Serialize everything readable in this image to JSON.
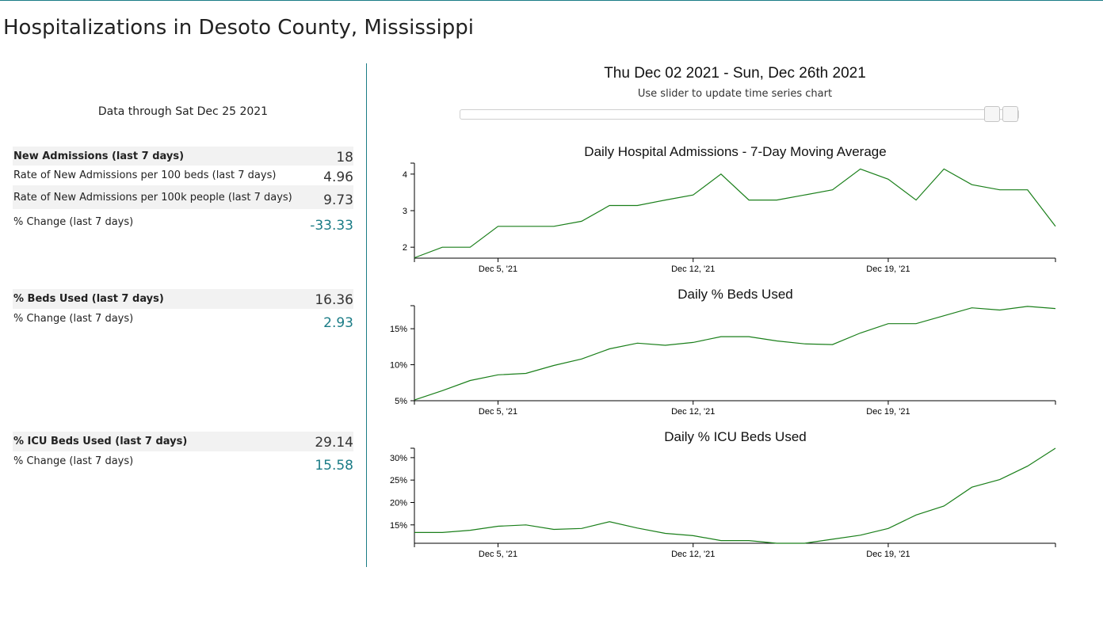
{
  "page_title": "Hospitalizations in Desoto County, Mississippi",
  "summary": {
    "data_through": "Data through Sat Dec 25 2021",
    "admissions": [
      {
        "label": "New Admissions (last 7 days)",
        "value": "18",
        "bold": true,
        "teal": false
      },
      {
        "label": "Rate of New Admissions per 100 beds (last 7 days)",
        "value": "4.96",
        "bold": false,
        "teal": false
      },
      {
        "label": "Rate of New Admissions per 100k people (last 7 days)",
        "value": "9.73",
        "bold": false,
        "teal": false
      },
      {
        "label": "% Change (last 7 days)",
        "value": "-33.33",
        "bold": false,
        "teal": true
      }
    ],
    "beds": [
      {
        "label": "% Beds Used (last 7 days)",
        "value": "16.36",
        "bold": true,
        "teal": false
      },
      {
        "label": "% Change (last 7 days)",
        "value": "2.93",
        "bold": false,
        "teal": true
      }
    ],
    "icu": [
      {
        "label": "% ICU Beds Used (last 7 days)",
        "value": "29.14",
        "bold": true,
        "teal": false
      },
      {
        "label": "% Change (last 7 days)",
        "value": "15.58",
        "bold": false,
        "teal": true
      }
    ]
  },
  "timeline": {
    "date_range": "Thu Dec 02 2021 - Sun, Dec 26th 2021",
    "slider_hint": "Use slider to update time series chart"
  },
  "colors": {
    "accent": "#1b7c86",
    "line": "#1a7f1a",
    "shaded_row": "#f2f2f2"
  },
  "chart_data": [
    {
      "type": "line",
      "title": "Daily Hospital Admissions - 7-Day Moving Average",
      "xlabel": "",
      "ylabel": "",
      "x_ticks": [
        "Dec 5, '21",
        "Dec 12, '21",
        "Dec 19, '21"
      ],
      "y_ticks": [
        "2",
        "3",
        "4"
      ],
      "ylim": [
        1.7,
        4.3
      ],
      "x": [
        "2021-12-02",
        "2021-12-03",
        "2021-12-04",
        "2021-12-05",
        "2021-12-06",
        "2021-12-07",
        "2021-12-08",
        "2021-12-09",
        "2021-12-10",
        "2021-12-11",
        "2021-12-12",
        "2021-12-13",
        "2021-12-14",
        "2021-12-15",
        "2021-12-16",
        "2021-12-17",
        "2021-12-18",
        "2021-12-19",
        "2021-12-20",
        "2021-12-21",
        "2021-12-22",
        "2021-12-23",
        "2021-12-24",
        "2021-12-25"
      ],
      "values": [
        1.71,
        2.0,
        2.0,
        2.57,
        2.57,
        2.57,
        2.71,
        3.14,
        3.14,
        3.29,
        3.43,
        4.0,
        3.29,
        3.29,
        3.43,
        3.57,
        4.14,
        3.86,
        3.29,
        4.14,
        3.71,
        3.57,
        3.57,
        2.57
      ],
      "grid": false,
      "legend": "none"
    },
    {
      "type": "line",
      "title": "Daily % Beds Used",
      "xlabel": "",
      "ylabel": "",
      "x_ticks": [
        "Dec 5, '21",
        "Dec 12, '21",
        "Dec 19, '21"
      ],
      "y_ticks": [
        "5%",
        "10%",
        "15%"
      ],
      "ylim": [
        5,
        18.2
      ],
      "x": [
        "2021-12-02",
        "2021-12-03",
        "2021-12-04",
        "2021-12-05",
        "2021-12-06",
        "2021-12-07",
        "2021-12-08",
        "2021-12-09",
        "2021-12-10",
        "2021-12-11",
        "2021-12-12",
        "2021-12-13",
        "2021-12-14",
        "2021-12-15",
        "2021-12-16",
        "2021-12-17",
        "2021-12-18",
        "2021-12-19",
        "2021-12-20",
        "2021-12-21",
        "2021-12-22",
        "2021-12-23",
        "2021-12-24",
        "2021-12-25"
      ],
      "values": [
        5.1,
        6.4,
        7.8,
        8.6,
        8.8,
        9.9,
        10.8,
        12.2,
        13.0,
        12.7,
        13.1,
        13.9,
        13.9,
        13.3,
        12.9,
        12.8,
        14.4,
        15.7,
        15.7,
        16.8,
        17.9,
        17.6,
        18.1,
        17.8
      ],
      "grid": false,
      "legend": "none"
    },
    {
      "type": "line",
      "title": "Daily % ICU Beds Used",
      "xlabel": "",
      "ylabel": "",
      "x_ticks": [
        "Dec 5, '21",
        "Dec 12, '21",
        "Dec 19, '21"
      ],
      "y_ticks": [
        "15%",
        "20%",
        "25%",
        "30%"
      ],
      "ylim": [
        10.9,
        32.1
      ],
      "x": [
        "2021-12-02",
        "2021-12-03",
        "2021-12-04",
        "2021-12-05",
        "2021-12-06",
        "2021-12-07",
        "2021-12-08",
        "2021-12-09",
        "2021-12-10",
        "2021-12-11",
        "2021-12-12",
        "2021-12-13",
        "2021-12-14",
        "2021-12-15",
        "2021-12-16",
        "2021-12-17",
        "2021-12-18",
        "2021-12-19",
        "2021-12-20",
        "2021-12-21",
        "2021-12-22",
        "2021-12-23",
        "2021-12-24",
        "2021-12-25"
      ],
      "values": [
        13.3,
        13.3,
        13.8,
        14.7,
        15.0,
        14.0,
        14.2,
        15.7,
        14.3,
        13.1,
        12.6,
        11.5,
        11.5,
        10.9,
        10.9,
        11.8,
        12.7,
        14.2,
        17.2,
        19.2,
        23.4,
        25.1,
        28.1,
        32.1
      ],
      "grid": false,
      "legend": "none"
    }
  ]
}
